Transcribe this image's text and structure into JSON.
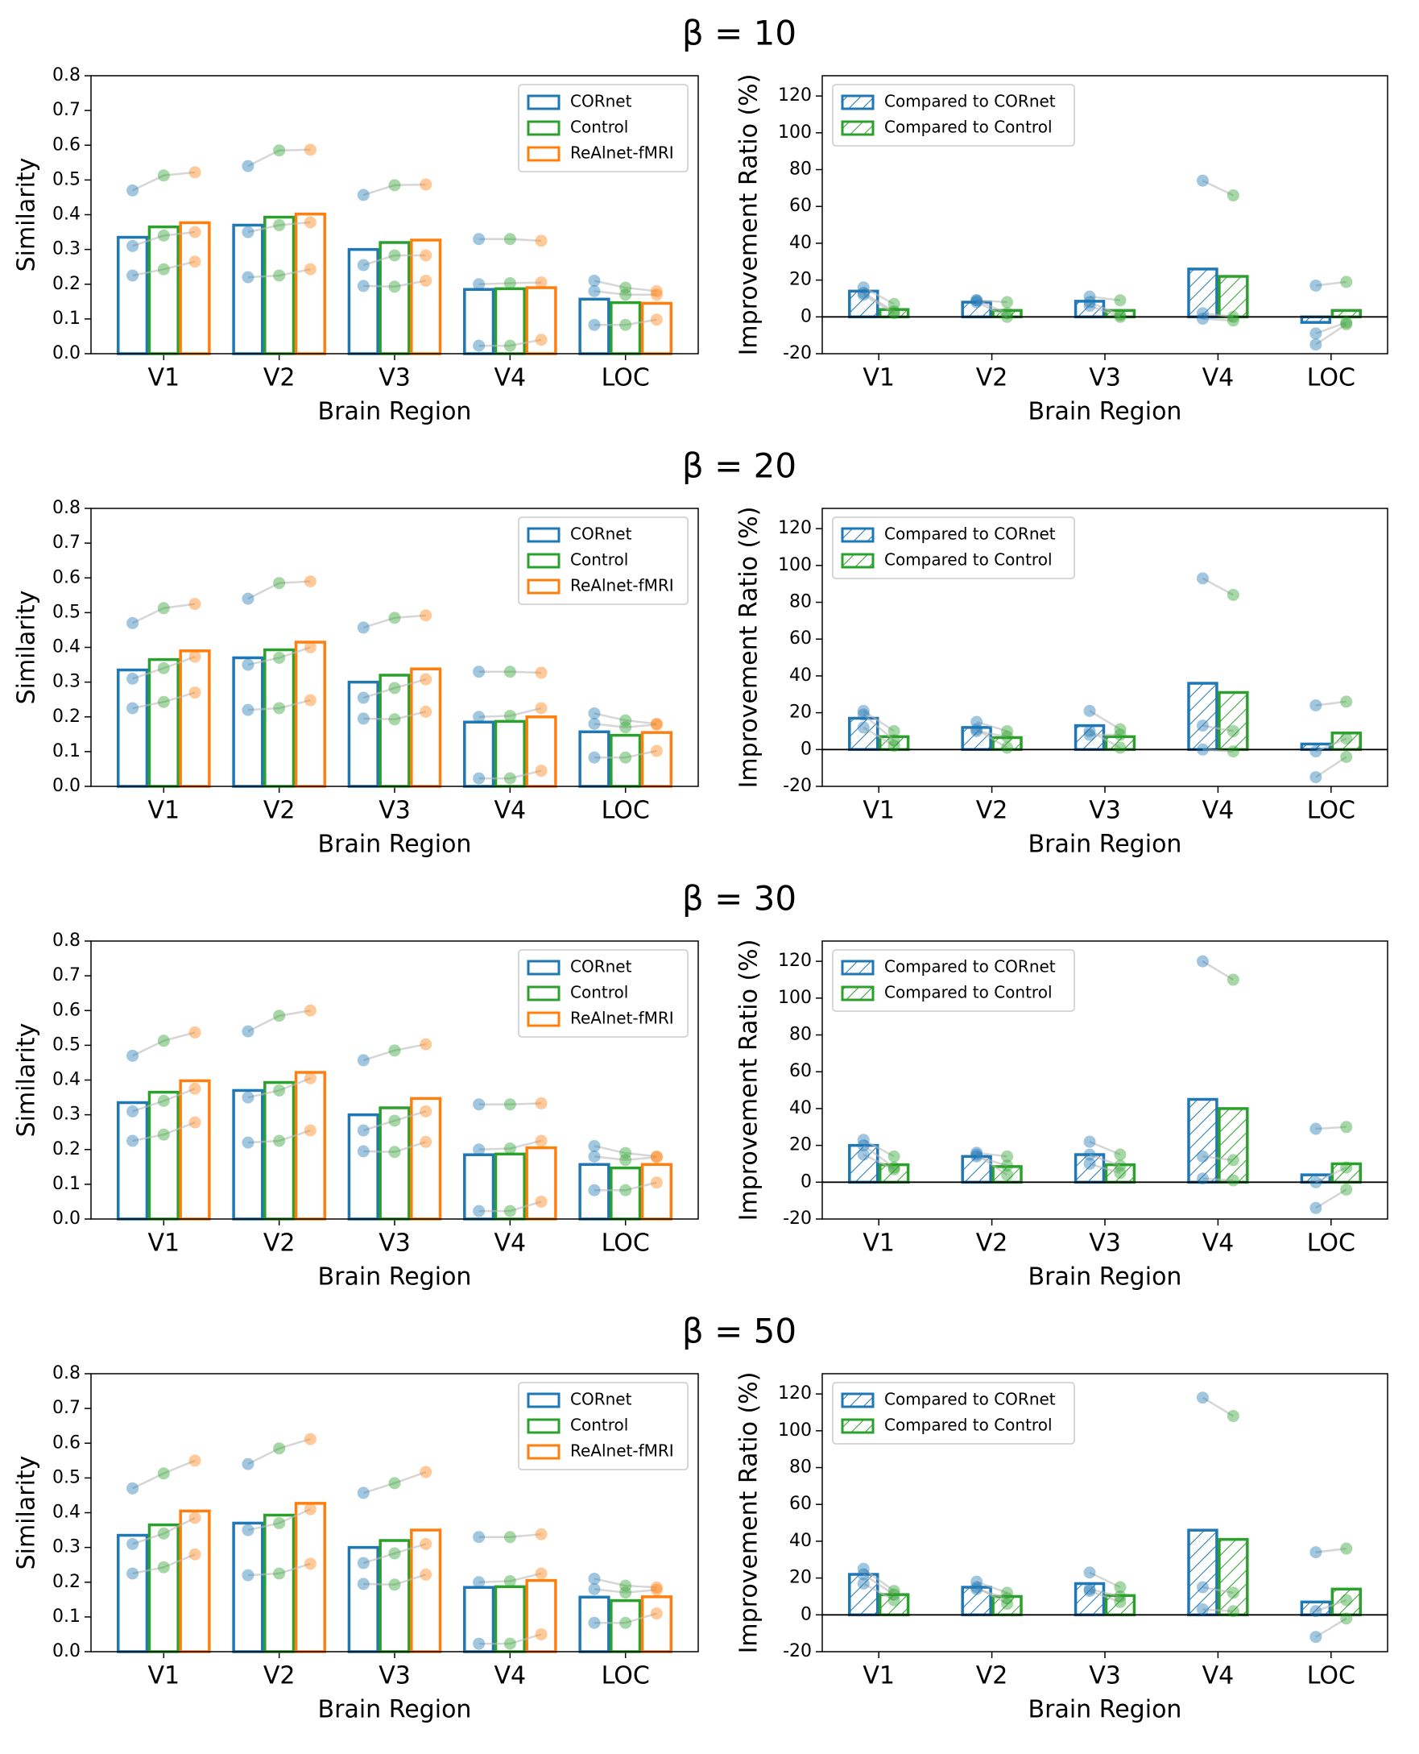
{
  "chart_data": [
    {
      "type": "bar",
      "title": "β = 10",
      "xlabel": "Brain Region",
      "ylabel": "Similarity",
      "categories": [
        "V1",
        "V2",
        "V3",
        "V4",
        "LOC"
      ],
      "ylim": [
        0,
        0.8
      ],
      "yticks": [
        {
          "value": 0,
          "label": "0.0"
        },
        0.1,
        0.2,
        0.3,
        0.4,
        0.5,
        0.6,
        0.7,
        0.8
      ],
      "legend": "upper right",
      "series": [
        {
          "name": "CORnet",
          "color": "#1f77b4",
          "values": [
            0.335,
            0.37,
            0.3,
            0.185,
            0.157
          ],
          "points": [
            [
              0.47,
              0.31,
              0.225
            ],
            [
              0.54,
              0.35,
              0.22
            ],
            [
              0.457,
              0.255,
              0.195
            ],
            [
              0.33,
              0.2,
              0.023
            ],
            [
              0.21,
              0.18,
              0.083
            ]
          ]
        },
        {
          "name": "Control",
          "color": "#2ca02c",
          "values": [
            0.365,
            0.393,
            0.32,
            0.187,
            0.147
          ],
          "points": [
            [
              0.513,
              0.34,
              0.243
            ],
            [
              0.585,
              0.37,
              0.225
            ],
            [
              0.485,
              0.283,
              0.193
            ],
            [
              0.33,
              0.203,
              0.023
            ],
            [
              0.19,
              0.17,
              0.083
            ]
          ]
        },
        {
          "name": "ReAlnet-fMRI",
          "color": "#ff7f0e",
          "values": [
            0.377,
            0.402,
            0.327,
            0.19,
            0.145
          ],
          "points": [
            [
              0.522,
              0.35,
              0.265
            ],
            [
              0.587,
              0.378,
              0.243
            ],
            [
              0.487,
              0.283,
              0.21
            ],
            [
              0.325,
              0.205,
              0.04
            ],
            [
              0.18,
              0.17,
              0.098
            ]
          ]
        }
      ]
    },
    {
      "type": "bar",
      "xlabel": "Brain Region",
      "ylabel": "Improvement Ratio (%)",
      "categories": [
        "V1",
        "V2",
        "V3",
        "V4",
        "LOC"
      ],
      "ylim": [
        -20,
        131
      ],
      "yticks": [
        -20,
        0,
        20,
        40,
        60,
        80,
        100,
        120
      ],
      "legend": "upper left",
      "hline": 0,
      "hatch": true,
      "series": [
        {
          "name": "Compared to CORnet",
          "color": "#1f77b4",
          "values": [
            14,
            8,
            8.5,
            26,
            -3
          ],
          "points": [
            [
              16,
              12,
              13
            ],
            [
              9,
              8,
              9
            ],
            [
              11,
              6,
              8
            ],
            [
              74,
              2,
              -1
            ],
            [
              17,
              -9,
              -15
            ]
          ]
        },
        {
          "name": "Compared to Control",
          "color": "#2ca02c",
          "values": [
            4,
            3.5,
            3.5,
            22,
            3.5
          ],
          "points": [
            [
              7,
              2,
              3
            ],
            [
              8,
              0,
              2
            ],
            [
              9,
              0,
              1
            ],
            [
              66,
              0,
              -2
            ],
            [
              19,
              -3,
              -4
            ]
          ]
        }
      ]
    },
    {
      "type": "bar",
      "title": "β = 20",
      "xlabel": "Brain Region",
      "ylabel": "Similarity",
      "categories": [
        "V1",
        "V2",
        "V3",
        "V4",
        "LOC"
      ],
      "ylim": [
        0,
        0.8
      ],
      "yticks": [
        {
          "value": 0,
          "label": "0.0"
        },
        0.1,
        0.2,
        0.3,
        0.4,
        0.5,
        0.6,
        0.7,
        0.8
      ],
      "legend": "upper right",
      "series": [
        {
          "name": "CORnet",
          "color": "#1f77b4",
          "values": [
            0.335,
            0.37,
            0.3,
            0.185,
            0.157
          ],
          "points": [
            [
              0.47,
              0.31,
              0.225
            ],
            [
              0.54,
              0.35,
              0.22
            ],
            [
              0.457,
              0.255,
              0.195
            ],
            [
              0.33,
              0.2,
              0.023
            ],
            [
              0.21,
              0.18,
              0.083
            ]
          ]
        },
        {
          "name": "Control",
          "color": "#2ca02c",
          "values": [
            0.365,
            0.393,
            0.32,
            0.187,
            0.147
          ],
          "points": [
            [
              0.513,
              0.34,
              0.243
            ],
            [
              0.585,
              0.37,
              0.225
            ],
            [
              0.485,
              0.283,
              0.193
            ],
            [
              0.33,
              0.203,
              0.023
            ],
            [
              0.19,
              0.17,
              0.083
            ]
          ]
        },
        {
          "name": "ReAlnet-fMRI",
          "color": "#ff7f0e",
          "values": [
            0.39,
            0.415,
            0.338,
            0.2,
            0.155
          ],
          "points": [
            [
              0.525,
              0.373,
              0.27
            ],
            [
              0.59,
              0.4,
              0.248
            ],
            [
              0.492,
              0.308,
              0.215
            ],
            [
              0.327,
              0.225,
              0.045
            ],
            [
              0.18,
              0.178,
              0.102
            ]
          ]
        }
      ]
    },
    {
      "type": "bar",
      "xlabel": "Brain Region",
      "ylabel": "Improvement Ratio (%)",
      "categories": [
        "V1",
        "V2",
        "V3",
        "V4",
        "LOC"
      ],
      "ylim": [
        -20,
        131
      ],
      "yticks": [
        -20,
        0,
        20,
        40,
        60,
        80,
        100,
        120
      ],
      "legend": "upper left",
      "hline": 0,
      "hatch": true,
      "series": [
        {
          "name": "Compared to CORnet",
          "color": "#1f77b4",
          "values": [
            17,
            12,
            13,
            36,
            3
          ],
          "points": [
            [
              21,
              19,
              12
            ],
            [
              15,
              10,
              11
            ],
            [
              21,
              8,
              10
            ],
            [
              93,
              13,
              0
            ],
            [
              24,
              -1,
              -15
            ]
          ]
        },
        {
          "name": "Compared to Control",
          "color": "#2ca02c",
          "values": [
            7,
            6.5,
            7,
            31,
            9
          ],
          "points": [
            [
              10,
              5,
              2
            ],
            [
              10,
              7,
              1
            ],
            [
              11,
              8,
              1
            ],
            [
              84,
              10,
              -1
            ],
            [
              26,
              6,
              -4
            ]
          ]
        }
      ]
    },
    {
      "type": "bar",
      "title": "β = 30",
      "xlabel": "Brain Region",
      "ylabel": "Similarity",
      "categories": [
        "V1",
        "V2",
        "V3",
        "V4",
        "LOC"
      ],
      "ylim": [
        0,
        0.8
      ],
      "yticks": [
        {
          "value": 0,
          "label": "0.0"
        },
        0.1,
        0.2,
        0.3,
        0.4,
        0.5,
        0.6,
        0.7,
        0.8
      ],
      "legend": "upper right",
      "series": [
        {
          "name": "CORnet",
          "color": "#1f77b4",
          "values": [
            0.335,
            0.37,
            0.3,
            0.185,
            0.157
          ],
          "points": [
            [
              0.47,
              0.31,
              0.225
            ],
            [
              0.54,
              0.35,
              0.22
            ],
            [
              0.457,
              0.255,
              0.195
            ],
            [
              0.33,
              0.2,
              0.023
            ],
            [
              0.21,
              0.18,
              0.083
            ]
          ]
        },
        {
          "name": "Control",
          "color": "#2ca02c",
          "values": [
            0.365,
            0.393,
            0.32,
            0.187,
            0.147
          ],
          "points": [
            [
              0.513,
              0.34,
              0.243
            ],
            [
              0.585,
              0.37,
              0.225
            ],
            [
              0.485,
              0.283,
              0.193
            ],
            [
              0.33,
              0.203,
              0.023
            ],
            [
              0.19,
              0.17,
              0.083
            ]
          ]
        },
        {
          "name": "ReAlnet-fMRI",
          "color": "#ff7f0e",
          "values": [
            0.398,
            0.422,
            0.347,
            0.205,
            0.157
          ],
          "points": [
            [
              0.537,
              0.375,
              0.278
            ],
            [
              0.6,
              0.405,
              0.255
            ],
            [
              0.503,
              0.31,
              0.222
            ],
            [
              0.333,
              0.225,
              0.05
            ],
            [
              0.18,
              0.178,
              0.105
            ]
          ]
        }
      ]
    },
    {
      "type": "bar",
      "xlabel": "Brain Region",
      "ylabel": "Improvement Ratio (%)",
      "categories": [
        "V1",
        "V2",
        "V3",
        "V4",
        "LOC"
      ],
      "ylim": [
        -20,
        131
      ],
      "yticks": [
        -20,
        0,
        20,
        40,
        60,
        80,
        100,
        120
      ],
      "legend": "upper left",
      "hline": 0,
      "hatch": true,
      "series": [
        {
          "name": "Compared to CORnet",
          "color": "#1f77b4",
          "values": [
            20,
            14,
            15,
            45,
            4
          ],
          "points": [
            [
              23,
              20,
              15
            ],
            [
              16,
              14,
              15
            ],
            [
              22,
              15,
              10
            ],
            [
              120,
              14,
              2
            ],
            [
              29,
              0,
              -14
            ]
          ]
        },
        {
          "name": "Compared to Control",
          "color": "#2ca02c",
          "values": [
            9.5,
            8.5,
            9.5,
            40,
            10
          ],
          "points": [
            [
              14,
              8,
              7
            ],
            [
              14,
              9,
              4
            ],
            [
              15,
              9,
              5
            ],
            [
              110,
              12,
              1
            ],
            [
              30,
              8,
              -4
            ]
          ]
        }
      ]
    },
    {
      "type": "bar",
      "title": "β = 50",
      "xlabel": "Brain Region",
      "ylabel": "Similarity",
      "categories": [
        "V1",
        "V2",
        "V3",
        "V4",
        "LOC"
      ],
      "ylim": [
        0,
        0.8
      ],
      "yticks": [
        {
          "value": 0,
          "label": "0.0"
        },
        0.1,
        0.2,
        0.3,
        0.4,
        0.5,
        0.6,
        0.7,
        0.8
      ],
      "legend": "upper right",
      "series": [
        {
          "name": "CORnet",
          "color": "#1f77b4",
          "values": [
            0.335,
            0.37,
            0.3,
            0.185,
            0.157
          ],
          "points": [
            [
              0.47,
              0.31,
              0.225
            ],
            [
              0.54,
              0.35,
              0.22
            ],
            [
              0.457,
              0.255,
              0.195
            ],
            [
              0.33,
              0.2,
              0.023
            ],
            [
              0.21,
              0.18,
              0.083
            ]
          ]
        },
        {
          "name": "Control",
          "color": "#2ca02c",
          "values": [
            0.365,
            0.393,
            0.32,
            0.187,
            0.147
          ],
          "points": [
            [
              0.513,
              0.34,
              0.243
            ],
            [
              0.585,
              0.37,
              0.225
            ],
            [
              0.485,
              0.283,
              0.193
            ],
            [
              0.33,
              0.203,
              0.023
            ],
            [
              0.19,
              0.17,
              0.083
            ]
          ]
        },
        {
          "name": "ReAlnet-fMRI",
          "color": "#ff7f0e",
          "values": [
            0.405,
            0.427,
            0.35,
            0.205,
            0.158
          ],
          "points": [
            [
              0.55,
              0.385,
              0.28
            ],
            [
              0.612,
              0.41,
              0.253
            ],
            [
              0.517,
              0.31,
              0.222
            ],
            [
              0.338,
              0.225,
              0.05
            ],
            [
              0.185,
              0.178,
              0.11
            ]
          ]
        }
      ]
    },
    {
      "type": "bar",
      "xlabel": "Brain Region",
      "ylabel": "Improvement Ratio (%)",
      "categories": [
        "V1",
        "V2",
        "V3",
        "V4",
        "LOC"
      ],
      "ylim": [
        -20,
        131
      ],
      "yticks": [
        -20,
        0,
        20,
        40,
        60,
        80,
        100,
        120
      ],
      "legend": "upper left",
      "hline": 0,
      "hatch": true,
      "series": [
        {
          "name": "Compared to CORnet",
          "color": "#1f77b4",
          "values": [
            22,
            15,
            17,
            46,
            7
          ],
          "points": [
            [
              25,
              22,
              17
            ],
            [
              18,
              14,
              15
            ],
            [
              23,
              14,
              13
            ],
            [
              118,
              15,
              3
            ],
            [
              34,
              2,
              -12
            ]
          ]
        },
        {
          "name": "Compared to Control",
          "color": "#2ca02c",
          "values": [
            11,
            10,
            10.5,
            41,
            14
          ],
          "points": [
            [
              13,
              11,
              8
            ],
            [
              12,
              9,
              6
            ],
            [
              15,
              10,
              7
            ],
            [
              108,
              12,
              2
            ],
            [
              36,
              8,
              -2
            ]
          ]
        }
      ]
    }
  ]
}
